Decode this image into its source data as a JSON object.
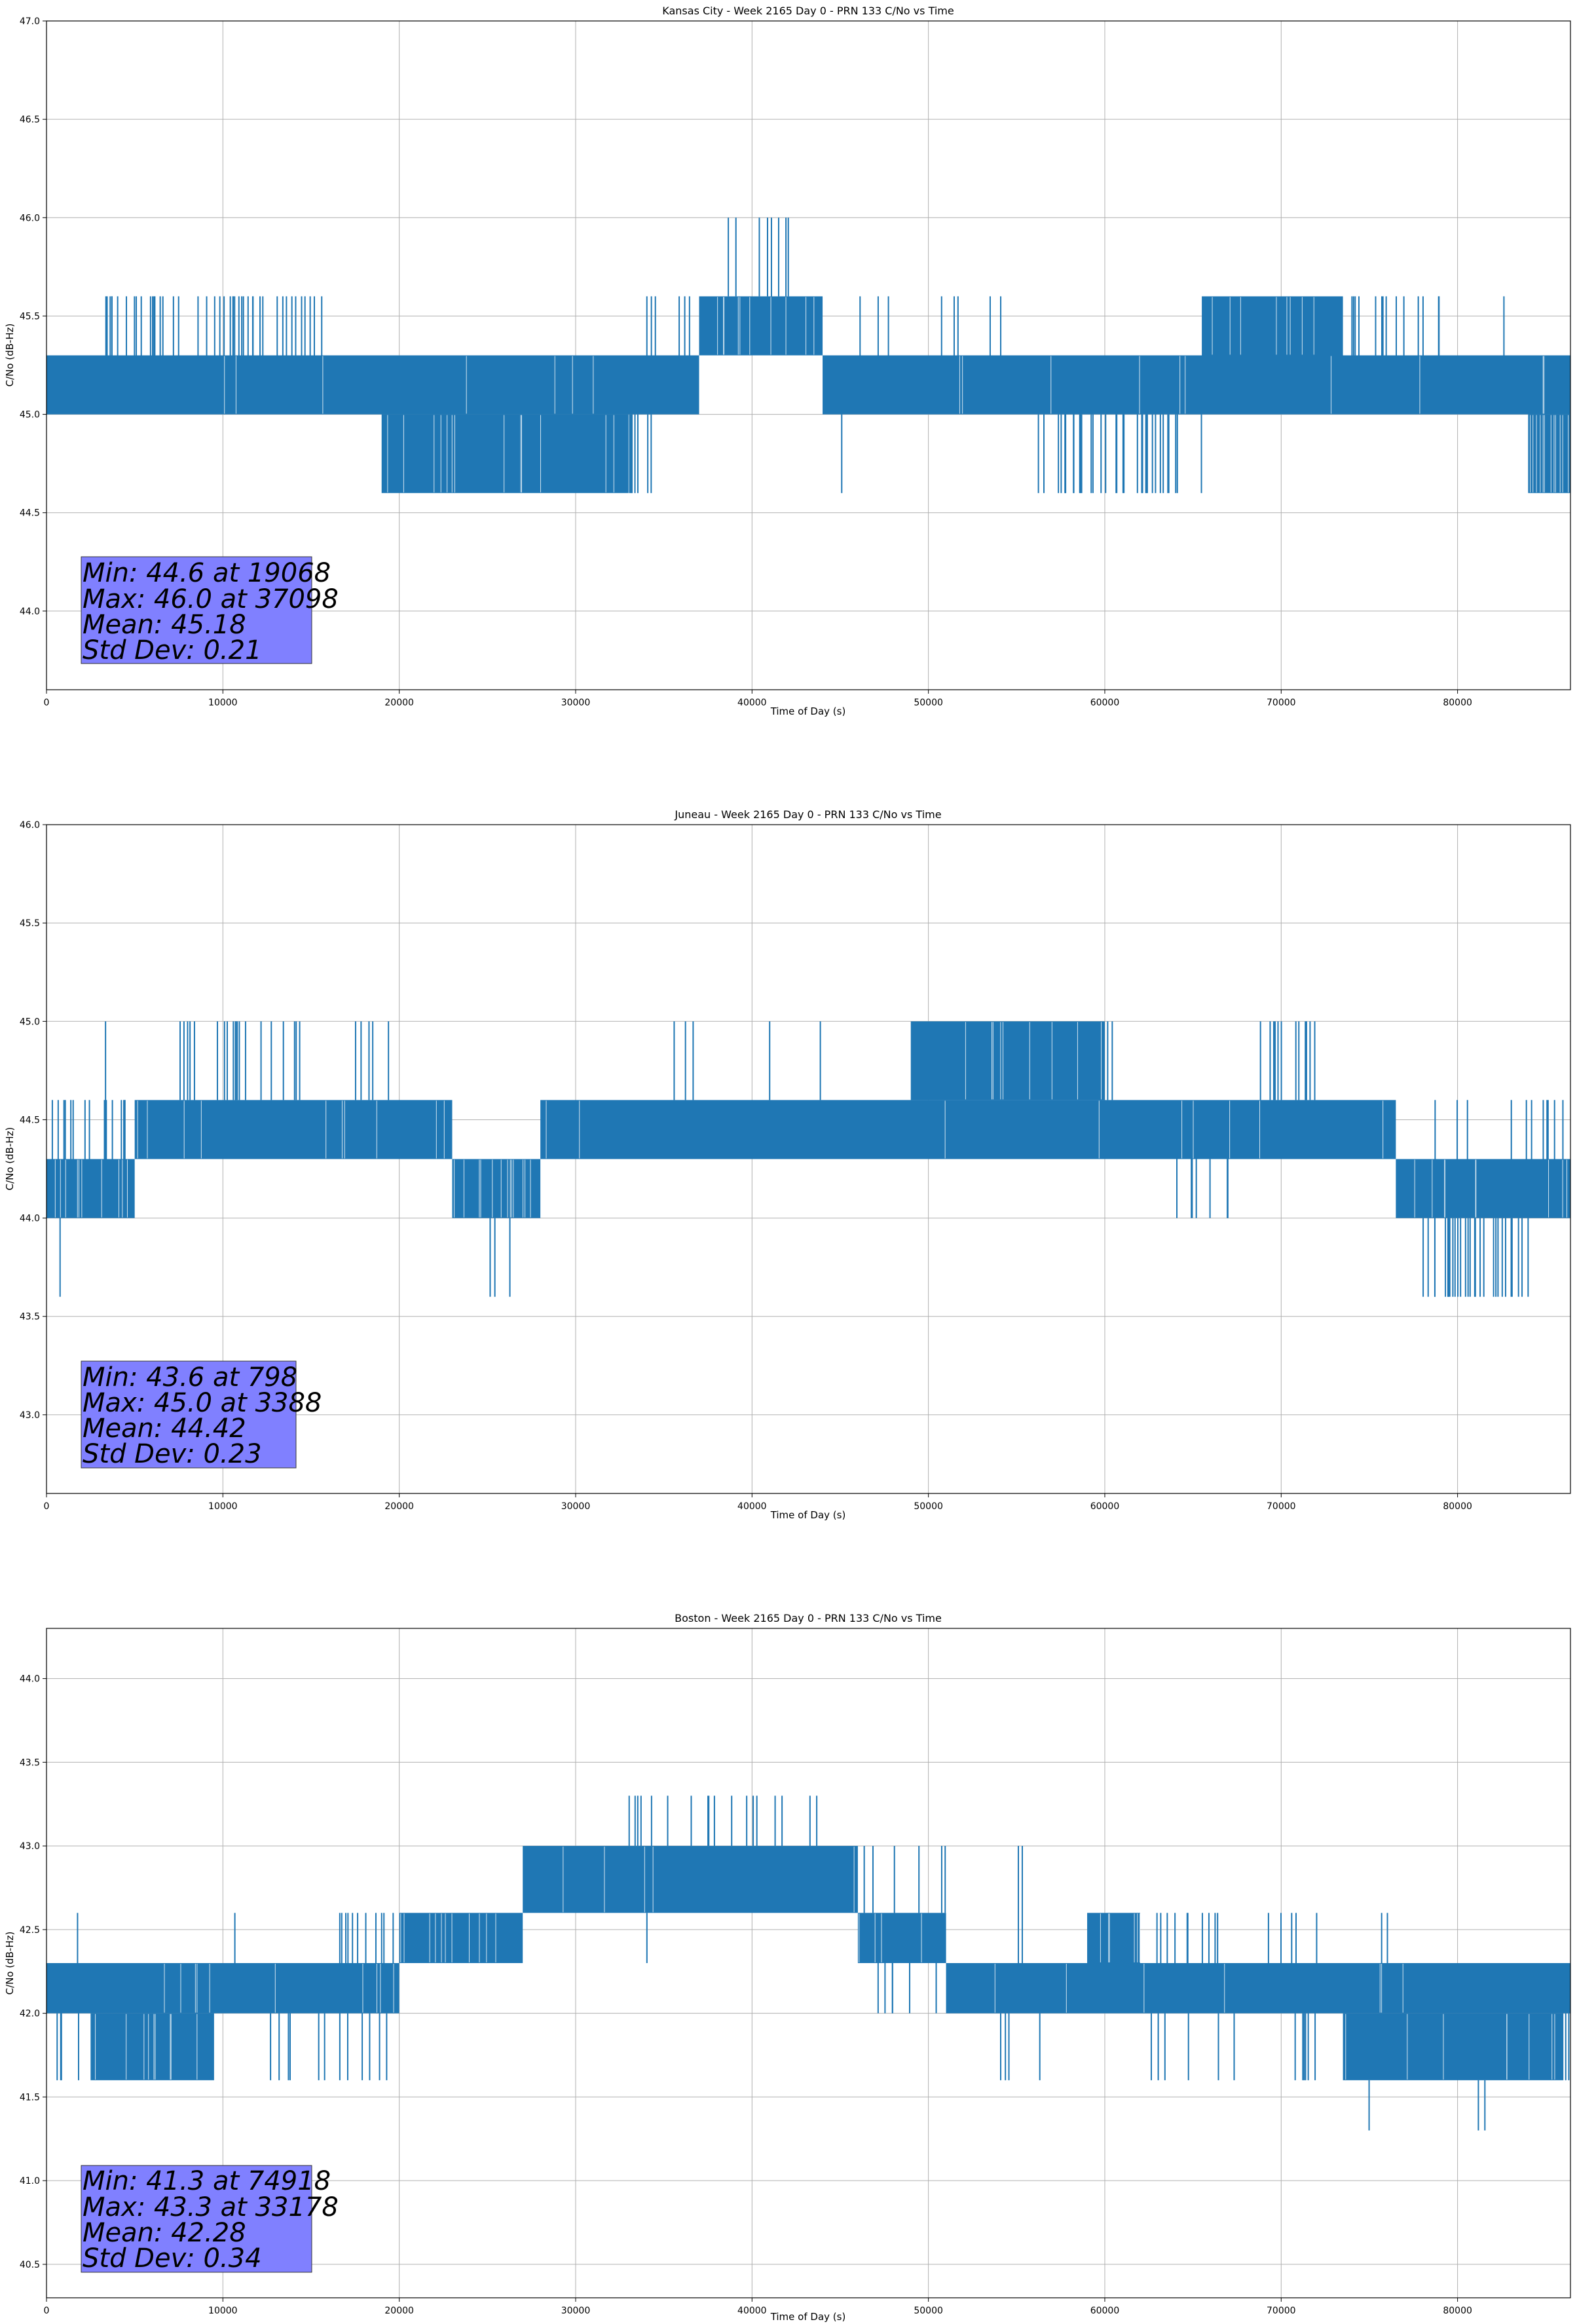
{
  "chart_data": [
    {
      "type": "line",
      "title": "Kansas City - Week 2165 Day 0 - PRN 133 C/No vs Time",
      "xlabel": "Time of Day (s)",
      "ylabel": "C/No (dB-Hz)",
      "xlim": [
        0,
        86400
      ],
      "ylim": [
        43.6,
        47.0
      ],
      "xticks": [
        0,
        10000,
        20000,
        30000,
        40000,
        50000,
        60000,
        70000,
        80000
      ],
      "yticks": [
        "44.0",
        "44.5",
        "45.0",
        "45.5",
        "46.0",
        "46.5",
        "47.0"
      ],
      "grid": true,
      "line_color": "#1f77b4",
      "stats_box_color": "#8080ff",
      "stats": [
        "Min: 44.6 at 19068",
        "Max: 46.0 at 37098",
        "Mean: 45.18",
        "Std Dev: 0.21"
      ],
      "series": [
        {
          "bands": [
            {
              "x": [
                0,
                37000
              ],
              "lo": 45.0,
              "hi": 45.3
            },
            {
              "x": [
                37000,
                44000
              ],
              "lo": 45.3,
              "hi": 45.6
            },
            {
              "x": [
                44000,
                86400
              ],
              "lo": 45.0,
              "hi": 45.3
            },
            {
              "x": [
                19000,
                33000
              ],
              "lo": 44.6,
              "hi": 45.0
            },
            {
              "x": [
                65500,
                73500
              ],
              "lo": 45.3,
              "hi": 45.6
            },
            {
              "x": [
                84000,
                86400
              ],
              "lo": 44.6,
              "hi": 45.0
            }
          ],
          "spikes_hi": [
            {
              "x": [
                300,
                2000
              ],
              "y": 45.3,
              "n": 20
            },
            {
              "x": [
                2500,
                16000
              ],
              "y": 45.6,
              "n": 45
            },
            {
              "x": [
                34000,
                37000
              ],
              "y": 45.6,
              "n": 6
            },
            {
              "x": [
                38000,
                42200
              ],
              "y": 46.0,
              "n": 8
            },
            {
              "x": [
                45500,
                55000
              ],
              "y": 45.6,
              "n": 8
            },
            {
              "x": [
                66000,
                80000
              ],
              "y": 45.6,
              "n": 35
            },
            {
              "x": [
                82500,
                82700
              ],
              "y": 45.6,
              "n": 1
            }
          ],
          "spikes_lo": [
            {
              "x": [
                19000,
                34500
              ],
              "y": 44.6,
              "n": 70
            },
            {
              "x": [
                45000,
                45200
              ],
              "y": 44.6,
              "n": 1
            },
            {
              "x": [
                56000,
                65500
              ],
              "y": 44.6,
              "n": 35
            },
            {
              "x": [
                84000,
                86400
              ],
              "y": 44.6,
              "n": 12
            }
          ]
        }
      ]
    },
    {
      "type": "line",
      "title": "Juneau - Week 2165 Day 0 - PRN 133 C/No vs Time",
      "xlabel": "Time of Day (s)",
      "ylabel": "C/No (dB-Hz)",
      "xlim": [
        0,
        86400
      ],
      "ylim": [
        42.6,
        46.0
      ],
      "xticks": [
        0,
        10000,
        20000,
        30000,
        40000,
        50000,
        60000,
        70000,
        80000
      ],
      "yticks": [
        "43.0",
        "43.5",
        "44.0",
        "44.5",
        "45.0",
        "45.5",
        "46.0"
      ],
      "grid": true,
      "line_color": "#1f77b4",
      "stats_box_color": "#8080ff",
      "stats": [
        "Min: 43.6 at 798",
        "Max: 45.0 at 3388",
        "Mean: 44.42",
        "Std Dev: 0.23"
      ],
      "series": [
        {
          "bands": [
            {
              "x": [
                0,
                5000
              ],
              "lo": 44.0,
              "hi": 44.3
            },
            {
              "x": [
                5000,
                23000
              ],
              "lo": 44.3,
              "hi": 44.6
            },
            {
              "x": [
                23000,
                28000
              ],
              "lo": 44.0,
              "hi": 44.3
            },
            {
              "x": [
                28000,
                76500
              ],
              "lo": 44.3,
              "hi": 44.6
            },
            {
              "x": [
                49000,
                60000
              ],
              "lo": 44.6,
              "hi": 45.0
            },
            {
              "x": [
                76500,
                86400
              ],
              "lo": 44.0,
              "hi": 44.3
            }
          ],
          "spikes_hi": [
            {
              "x": [
                0,
                5000
              ],
              "y": 44.6,
              "n": 15
            },
            {
              "x": [
                3300,
                3450
              ],
              "y": 45.0,
              "n": 1
            },
            {
              "x": [
                7000,
                14500
              ],
              "y": 45.0,
              "n": 20
            },
            {
              "x": [
                17500,
                19500
              ],
              "y": 45.0,
              "n": 5
            },
            {
              "x": [
                34000,
                37000
              ],
              "y": 45.0,
              "n": 3
            },
            {
              "x": [
                40600,
                41000
              ],
              "y": 45.0,
              "n": 1
            },
            {
              "x": [
                43500,
                44000
              ],
              "y": 45.0,
              "n": 1
            },
            {
              "x": [
                49000,
                60500
              ],
              "y": 45.0,
              "n": 40
            },
            {
              "x": [
                68500,
                72000
              ],
              "y": 45.0,
              "n": 12
            },
            {
              "x": [
                72500,
                86400
              ],
              "y": 44.6,
              "n": 20
            }
          ],
          "spikes_lo": [
            {
              "x": [
                700,
                850
              ],
              "y": 43.6,
              "n": 1
            },
            {
              "x": [
                25000,
                26500
              ],
              "y": 43.6,
              "n": 3
            },
            {
              "x": [
                64000,
                67000
              ],
              "y": 44.0,
              "n": 8
            },
            {
              "x": [
                77500,
                84000
              ],
              "y": 43.6,
              "n": 30
            }
          ]
        }
      ]
    },
    {
      "type": "line",
      "title": "Boston - Week 2165 Day 0 - PRN 133 C/No vs Time",
      "xlabel": "Time of Day (s)",
      "ylabel": "C/No (dB-Hz)",
      "xlim": [
        0,
        86400
      ],
      "ylim": [
        40.3,
        44.3
      ],
      "xticks": [
        0,
        10000,
        20000,
        30000,
        40000,
        50000,
        60000,
        70000,
        80000
      ],
      "yticks": [
        "40.5",
        "41.0",
        "41.5",
        "42.0",
        "42.5",
        "43.0",
        "43.5",
        "44.0"
      ],
      "grid": true,
      "line_color": "#1f77b4",
      "stats_box_color": "#8080ff",
      "stats": [
        "Min: 41.3 at 74918",
        "Max: 43.3 at 33178",
        "Mean: 42.28",
        "Std Dev: 0.34"
      ],
      "series": [
        {
          "bands": [
            {
              "x": [
                0,
                20000
              ],
              "lo": 42.0,
              "hi": 42.3
            },
            {
              "x": [
                2500,
                9500
              ],
              "lo": 41.6,
              "hi": 42.0
            },
            {
              "x": [
                20000,
                27000
              ],
              "lo": 42.3,
              "hi": 42.6
            },
            {
              "x": [
                27000,
                46000
              ],
              "lo": 42.6,
              "hi": 43.0
            },
            {
              "x": [
                46000,
                51000
              ],
              "lo": 42.3,
              "hi": 42.6
            },
            {
              "x": [
                51000,
                86400
              ],
              "lo": 42.0,
              "hi": 42.3
            },
            {
              "x": [
                59000,
                62000
              ],
              "lo": 42.3,
              "hi": 42.6
            },
            {
              "x": [
                73500,
                86000
              ],
              "lo": 41.6,
              "hi": 42.0
            }
          ],
          "spikes_hi": [
            {
              "x": [
                1700,
                1900
              ],
              "y": 42.6,
              "n": 1
            },
            {
              "x": [
                10500,
                10700
              ],
              "y": 42.6,
              "n": 1
            },
            {
              "x": [
                16000,
                27000
              ],
              "y": 42.6,
              "n": 30
            },
            {
              "x": [
                27000,
                46000
              ],
              "y": 43.0,
              "n": 20
            },
            {
              "x": [
                33000,
                44000
              ],
              "y": 43.3,
              "n": 18
            },
            {
              "x": [
                46000,
                51000
              ],
              "y": 43.0,
              "n": 6
            },
            {
              "x": [
                55000,
                55500
              ],
              "y": 43.0,
              "n": 2
            },
            {
              "x": [
                62000,
                72500
              ],
              "y": 42.6,
              "n": 15
            },
            {
              "x": [
                75500,
                76500
              ],
              "y": 42.6,
              "n": 2
            }
          ],
          "spikes_lo": [
            {
              "x": [
                500,
                2000
              ],
              "y": 41.6,
              "n": 4
            },
            {
              "x": [
                12500,
                20000
              ],
              "y": 41.6,
              "n": 12
            },
            {
              "x": [
                34000,
                34300
              ],
              "y": 42.3,
              "n": 1
            },
            {
              "x": [
                47000,
                51500
              ],
              "y": 42.0,
              "n": 6
            },
            {
              "x": [
                53500,
                56500
              ],
              "y": 41.6,
              "n": 4
            },
            {
              "x": [
                62000,
                72000
              ],
              "y": 41.6,
              "n": 12
            },
            {
              "x": [
                74800,
                75000
              ],
              "y": 41.3,
              "n": 1
            },
            {
              "x": [
                80900,
                81600
              ],
              "y": 41.3,
              "n": 2
            },
            {
              "x": [
                86000,
                86400
              ],
              "y": 41.6,
              "n": 2
            }
          ]
        }
      ]
    }
  ]
}
